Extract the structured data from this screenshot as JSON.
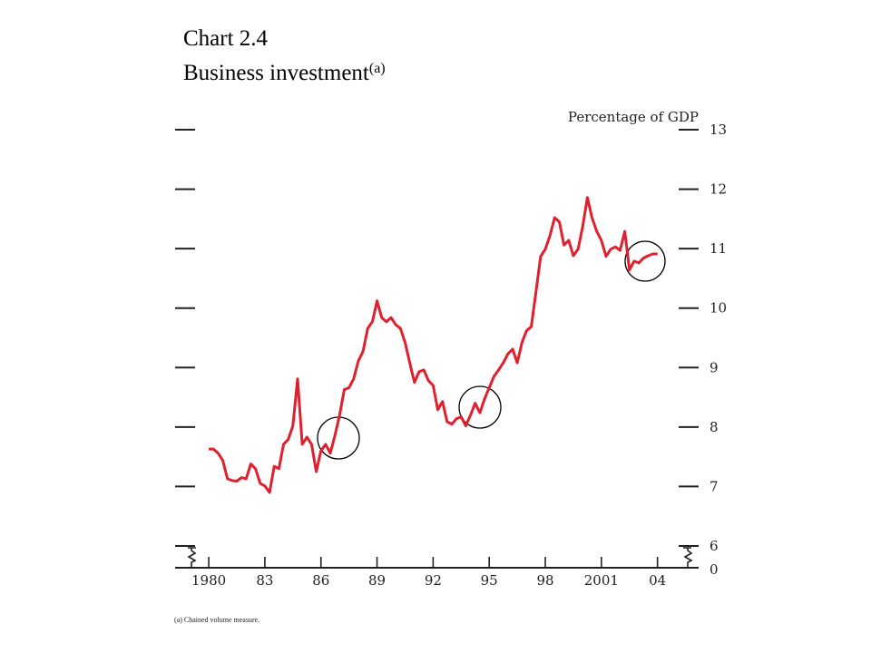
{
  "chart_data": {
    "type": "line",
    "title": "Chart 2.4",
    "subtitle": "Business investment",
    "subtitle_note": "(a)",
    "y_axis_label": "Percentage of GDP",
    "footnote": "(a)  Chained volume measure.",
    "color": "#e0202e",
    "x": [
      1980,
      1980.25,
      1980.5,
      1980.75,
      1981,
      1981.25,
      1981.5,
      1981.75,
      1982,
      1982.25,
      1982.5,
      1982.75,
      1983,
      1983.25,
      1983.5,
      1983.75,
      1984,
      1984.25,
      1984.5,
      1984.75,
      1985,
      1985.25,
      1985.5,
      1985.75,
      1986,
      1986.25,
      1986.5,
      1986.75,
      1987,
      1987.25,
      1987.5,
      1987.75,
      1988,
      1988.25,
      1988.5,
      1988.75,
      1989,
      1989.25,
      1989.5,
      1989.75,
      1990,
      1990.25,
      1990.5,
      1990.75,
      1991,
      1991.25,
      1991.5,
      1991.75,
      1992,
      1992.25,
      1992.5,
      1992.75,
      1993,
      1993.25,
      1993.5,
      1993.75,
      1994,
      1994.25,
      1994.5,
      1994.75,
      1995,
      1995.25,
      1995.5,
      1995.75,
      1996,
      1996.25,
      1996.5,
      1996.75,
      1997,
      1997.25,
      1997.5,
      1997.75,
      1998,
      1998.25,
      1998.5,
      1998.75,
      1999,
      1999.25,
      1999.5,
      1999.75,
      2000,
      2000.25,
      2000.5,
      2000.75,
      2001,
      2001.25,
      2001.5,
      2001.75,
      2002,
      2002.25,
      2002.5,
      2002.75,
      2003,
      2003.25,
      2003.5,
      2003.75,
      2004
    ],
    "values": [
      7.63,
      7.63,
      7.56,
      7.44,
      7.13,
      7.1,
      7.09,
      7.15,
      7.13,
      7.38,
      7.3,
      7.05,
      7.01,
      6.9,
      7.34,
      7.3,
      7.71,
      7.79,
      8.02,
      8.81,
      7.71,
      7.83,
      7.71,
      7.25,
      7.6,
      7.71,
      7.56,
      7.86,
      8.2,
      8.63,
      8.66,
      8.81,
      9.11,
      9.27,
      9.66,
      9.77,
      10.12,
      9.84,
      9.77,
      9.84,
      9.72,
      9.66,
      9.42,
      9.08,
      8.75,
      8.93,
      8.96,
      8.78,
      8.7,
      8.29,
      8.43,
      8.09,
      8.05,
      8.14,
      8.17,
      8.02,
      8.2,
      8.4,
      8.24,
      8.47,
      8.66,
      8.85,
      8.96,
      9.08,
      9.23,
      9.31,
      9.08,
      9.42,
      9.62,
      9.69,
      10.27,
      10.87,
      10.99,
      11.22,
      11.52,
      11.45,
      11.06,
      11.14,
      10.88,
      10.99,
      11.37,
      11.86,
      11.52,
      11.29,
      11.14,
      10.87,
      10.99,
      11.03,
      10.97,
      11.29,
      10.64,
      10.79,
      10.76,
      10.84,
      10.88,
      10.91,
      10.91
    ],
    "xlim": [
      1978.2,
      2006.2
    ],
    "xticks": [
      {
        "value": 1980,
        "label": "1980"
      },
      {
        "value": 1983,
        "label": "83"
      },
      {
        "value": 1986,
        "label": "86"
      },
      {
        "value": 1989,
        "label": "89"
      },
      {
        "value": 1992,
        "label": "92"
      },
      {
        "value": 1995,
        "label": "95"
      },
      {
        "value": 1998,
        "label": "98"
      },
      {
        "value": 2001,
        "label": "2001"
      },
      {
        "value": 2004,
        "label": "04"
      }
    ],
    "ylim": [
      6,
      13
    ],
    "yticks": [
      6,
      7,
      8,
      9,
      10,
      11,
      12,
      13
    ],
    "y_break_tick": 0
  }
}
